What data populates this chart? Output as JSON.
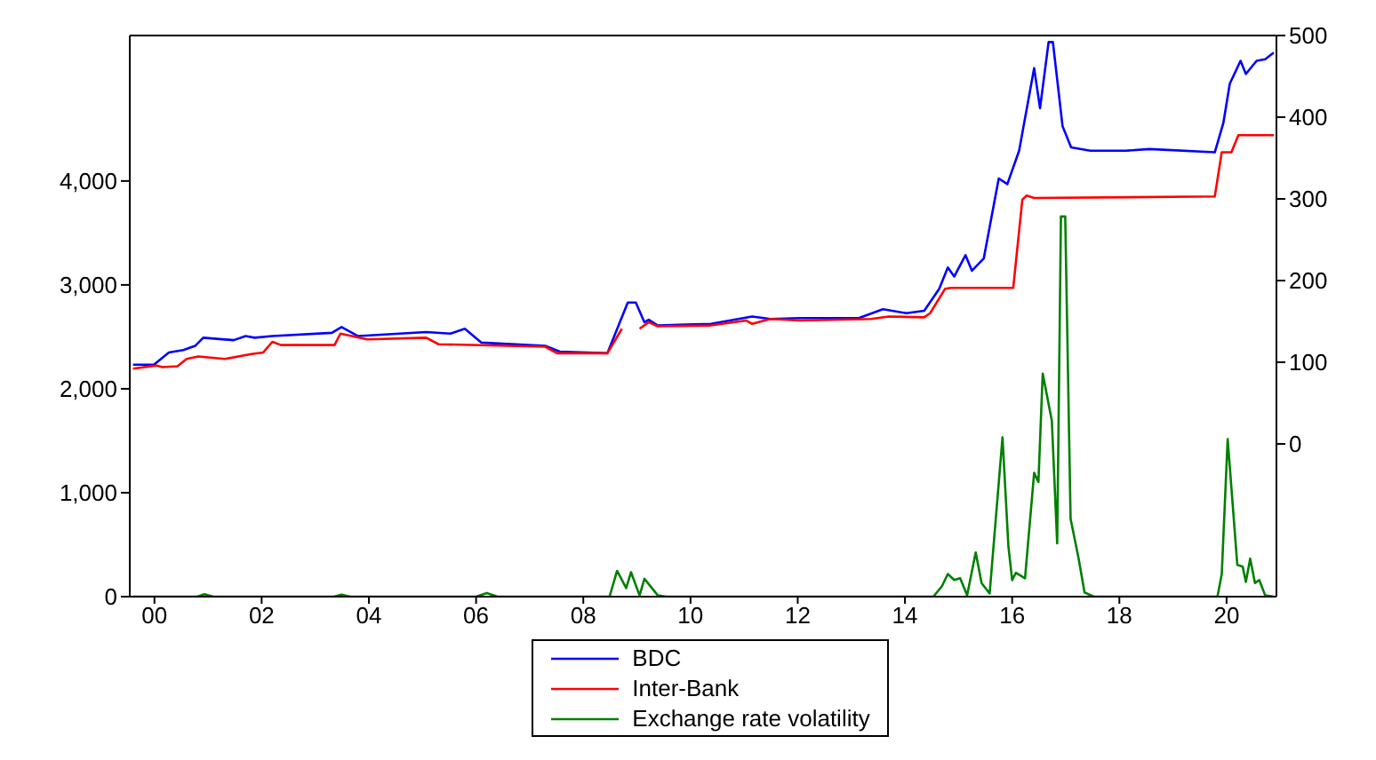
{
  "chart_data": {
    "type": "line",
    "xlim": [
      1999.54,
      2020.93
    ],
    "xticks": [
      {
        "value": 2000,
        "label": "00"
      },
      {
        "value": 2002,
        "label": "02"
      },
      {
        "value": 2004,
        "label": "04"
      },
      {
        "value": 2006,
        "label": "06"
      },
      {
        "value": 2008,
        "label": "08"
      },
      {
        "value": 2010,
        "label": "10"
      },
      {
        "value": 2012,
        "label": "12"
      },
      {
        "value": 2014,
        "label": "14"
      },
      {
        "value": 2016,
        "label": "16"
      },
      {
        "value": 2018,
        "label": "18"
      },
      {
        "value": 2020,
        "label": "20"
      }
    ],
    "ylim": [
      0,
      5400
    ],
    "yticks": [
      0,
      {
        "value": 1000,
        "label": "1,000"
      },
      {
        "value": 2000,
        "label": "2,000"
      },
      {
        "value": 3000,
        "label": "3,000"
      },
      {
        "value": 4000,
        "label": "4,000"
      }
    ],
    "y2lim": [
      -187,
      500
    ],
    "y2ticks": [
      0,
      100,
      200,
      300,
      400,
      500
    ],
    "legend": "bottom",
    "marker": "none",
    "line_style": "solid",
    "series": [
      {
        "name": "BDC",
        "color": "#0000ff",
        "axis": "y2",
        "x": [
          1999.6,
          1999.99,
          2000.27,
          2000.54,
          2000.76,
          2000.91,
          2001.48,
          2001.7,
          2001.87,
          2002.2,
          2003.31,
          2003.49,
          2003.8,
          2005.07,
          2005.52,
          2005.79,
          2006.1,
          2007.29,
          2007.56,
          2008.45,
          2008.67,
          2008.83,
          2008.98,
          2009.14,
          2009.22,
          2009.39,
          2010.38,
          2011.15,
          2011.49,
          2012.04,
          2013.14,
          2013.59,
          2014.03,
          2014.36,
          2014.64,
          2014.8,
          2014.92,
          2015.13,
          2015.25,
          2015.47,
          2015.75,
          2015.91,
          2016.13,
          2016.41,
          2016.52,
          2016.68,
          2016.76,
          2016.94,
          2017.1,
          2017.46,
          2018.12,
          2018.56,
          2019.78,
          2019.94,
          2020.06,
          2020.26,
          2020.36,
          2020.56,
          2020.72,
          2020.88
        ],
        "values": [
          97,
          97,
          112,
          115,
          120,
          130,
          127,
          132,
          130,
          132,
          136,
          143,
          132,
          137,
          135,
          141,
          124,
          120,
          113,
          111,
          147,
          173,
          173,
          149,
          152,
          145,
          147,
          156,
          153,
          154,
          154,
          165,
          160,
          163,
          190,
          216,
          205,
          231,
          212,
          227,
          325,
          318,
          359,
          460,
          411,
          492,
          492,
          389,
          363,
          359,
          359,
          361,
          357,
          393,
          441,
          469,
          453,
          469,
          471,
          479
        ]
      },
      {
        "name": "Inter-Bank",
        "color": "#ff0000",
        "axis": "y2",
        "x": [
          1999.6,
          2000.04,
          2000.15,
          2000.43,
          2000.6,
          2000.82,
          2001.31,
          2001.81,
          2002.03,
          2002.2,
          2002.36,
          2003.36,
          2003.47,
          2003.97,
          2005.07,
          2005.3,
          2007.29,
          2007.51,
          2008.45,
          2008.72,
          2008.88,
          2009.05,
          2009.22,
          2009.39,
          2010.38,
          2011.04,
          2011.15,
          2011.49,
          2012.04,
          2013.37,
          2013.7,
          2014.36,
          2014.47,
          2014.75,
          2014.86,
          2016.02,
          2016.19,
          2016.27,
          2016.41,
          2019.78,
          2019.91,
          2020.09,
          2020.22,
          2020.88
        ],
        "values": [
          92,
          96,
          94,
          95,
          104,
          107,
          104,
          110,
          112,
          125,
          121,
          121,
          135,
          128,
          130,
          122,
          119,
          111,
          111,
          141,
          null,
          141,
          149,
          144,
          145,
          151,
          147,
          153,
          151,
          153,
          156,
          155,
          160,
          190,
          191,
          191,
          299,
          304,
          301,
          303,
          357,
          357,
          378,
          378
        ]
      },
      {
        "name": "Exchange rate volatility",
        "color": "#008000",
        "axis": "y",
        "x": [
          1999.6,
          2000.8,
          2000.93,
          2001.1,
          2003.35,
          2003.49,
          2003.65,
          2006.0,
          2006.2,
          2006.4,
          2008.49,
          2008.63,
          2008.8,
          2008.89,
          2009.05,
          2009.14,
          2009.39,
          2009.55,
          2014.53,
          2014.69,
          2014.8,
          2014.92,
          2015.03,
          2015.16,
          2015.32,
          2015.43,
          2015.58,
          2015.82,
          2015.93,
          2016.0,
          2016.07,
          2016.24,
          2016.41,
          2016.49,
          2016.57,
          2016.74,
          2016.84,
          2016.91,
          2016.99,
          2017.09,
          2017.24,
          2017.35,
          2017.52,
          2019.83,
          2019.91,
          2020.02,
          2020.2,
          2020.3,
          2020.36,
          2020.44,
          2020.53,
          2020.61,
          2020.72,
          2020.88
        ],
        "values": [
          0,
          0,
          23,
          0,
          0,
          20,
          0,
          0,
          35,
          0,
          0,
          248,
          83,
          235,
          12,
          172,
          12,
          0,
          0,
          100,
          218,
          160,
          177,
          12,
          425,
          130,
          30,
          1534,
          484,
          159,
          230,
          177,
          1191,
          1103,
          2147,
          1694,
          513,
          3658,
          3658,
          749,
          366,
          41,
          0,
          0,
          218,
          1517,
          306,
          289,
          142,
          366,
          130,
          160,
          12,
          0
        ]
      }
    ]
  }
}
